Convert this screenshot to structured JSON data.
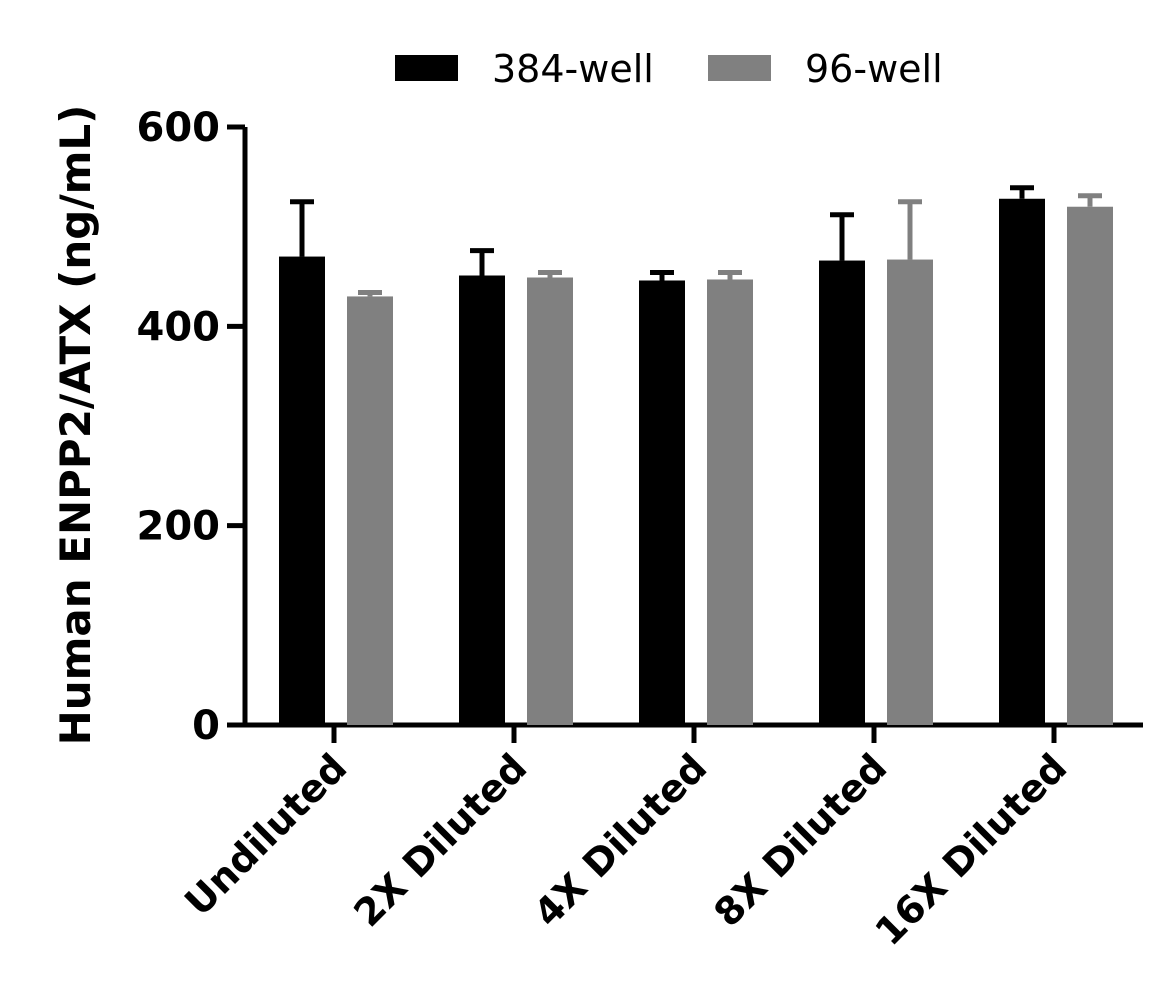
{
  "chart_data": {
    "type": "bar",
    "ylabel": "Human ENPP2/ATX (ng/mL)",
    "xlabel": "",
    "ylim": [
      0,
      600
    ],
    "yticks": [
      0,
      200,
      400,
      600
    ],
    "categories": [
      "Undiluted",
      "2X Diluted",
      "4X Diluted",
      "8X Diluted",
      "16X Diluted"
    ],
    "series": [
      {
        "name": "384-well",
        "color": "#000000",
        "values": [
          470,
          451,
          446,
          466,
          528
        ],
        "errors": [
          55,
          25,
          8,
          46,
          11
        ]
      },
      {
        "name": "96-well",
        "color": "#808080",
        "values": [
          430,
          449,
          447,
          467,
          520
        ],
        "errors": [
          4,
          5,
          7,
          58,
          11
        ]
      }
    ],
    "legend": "top",
    "grid": false
  }
}
